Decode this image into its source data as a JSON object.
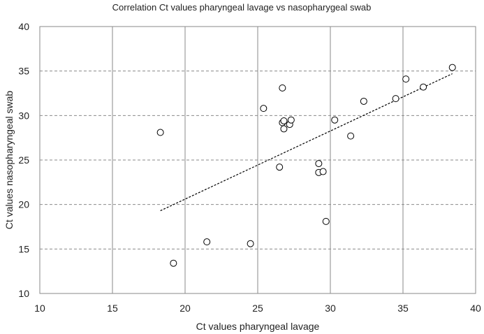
{
  "chart_data": {
    "type": "scatter",
    "title": "Correlation  Ct values pharyngeal lavage vs nasopharygeal swab",
    "xlabel": "Ct values pharyngeal lavage",
    "ylabel": "Ct values nasopharyngeal swab",
    "xlim": [
      10,
      40
    ],
    "ylim": [
      10,
      40
    ],
    "xticks": [
      10,
      15,
      20,
      25,
      30,
      35,
      40
    ],
    "yticks": [
      10,
      15,
      20,
      25,
      30,
      35,
      40
    ],
    "grid": {
      "vertical": "solid",
      "horizontal": "dashed"
    },
    "points": [
      {
        "x": 18.3,
        "y": 28.1
      },
      {
        "x": 19.2,
        "y": 13.4
      },
      {
        "x": 21.5,
        "y": 15.8
      },
      {
        "x": 24.5,
        "y": 15.6
      },
      {
        "x": 25.4,
        "y": 30.8
      },
      {
        "x": 26.5,
        "y": 24.2
      },
      {
        "x": 26.7,
        "y": 33.1
      },
      {
        "x": 26.7,
        "y": 29.2
      },
      {
        "x": 26.8,
        "y": 29.4
      },
      {
        "x": 26.8,
        "y": 28.5
      },
      {
        "x": 27.2,
        "y": 29.0
      },
      {
        "x": 27.3,
        "y": 29.5
      },
      {
        "x": 29.2,
        "y": 24.6
      },
      {
        "x": 29.2,
        "y": 23.6
      },
      {
        "x": 29.5,
        "y": 23.7
      },
      {
        "x": 29.7,
        "y": 18.1
      },
      {
        "x": 30.3,
        "y": 29.5
      },
      {
        "x": 31.4,
        "y": 27.7
      },
      {
        "x": 32.3,
        "y": 31.6
      },
      {
        "x": 34.5,
        "y": 31.9
      },
      {
        "x": 35.2,
        "y": 34.1
      },
      {
        "x": 36.4,
        "y": 33.2
      },
      {
        "x": 38.4,
        "y": 35.4
      }
    ],
    "trendline": {
      "x": [
        18.3,
        38.4
      ],
      "y": [
        19.3,
        34.7
      ],
      "style": "dashed"
    }
  }
}
